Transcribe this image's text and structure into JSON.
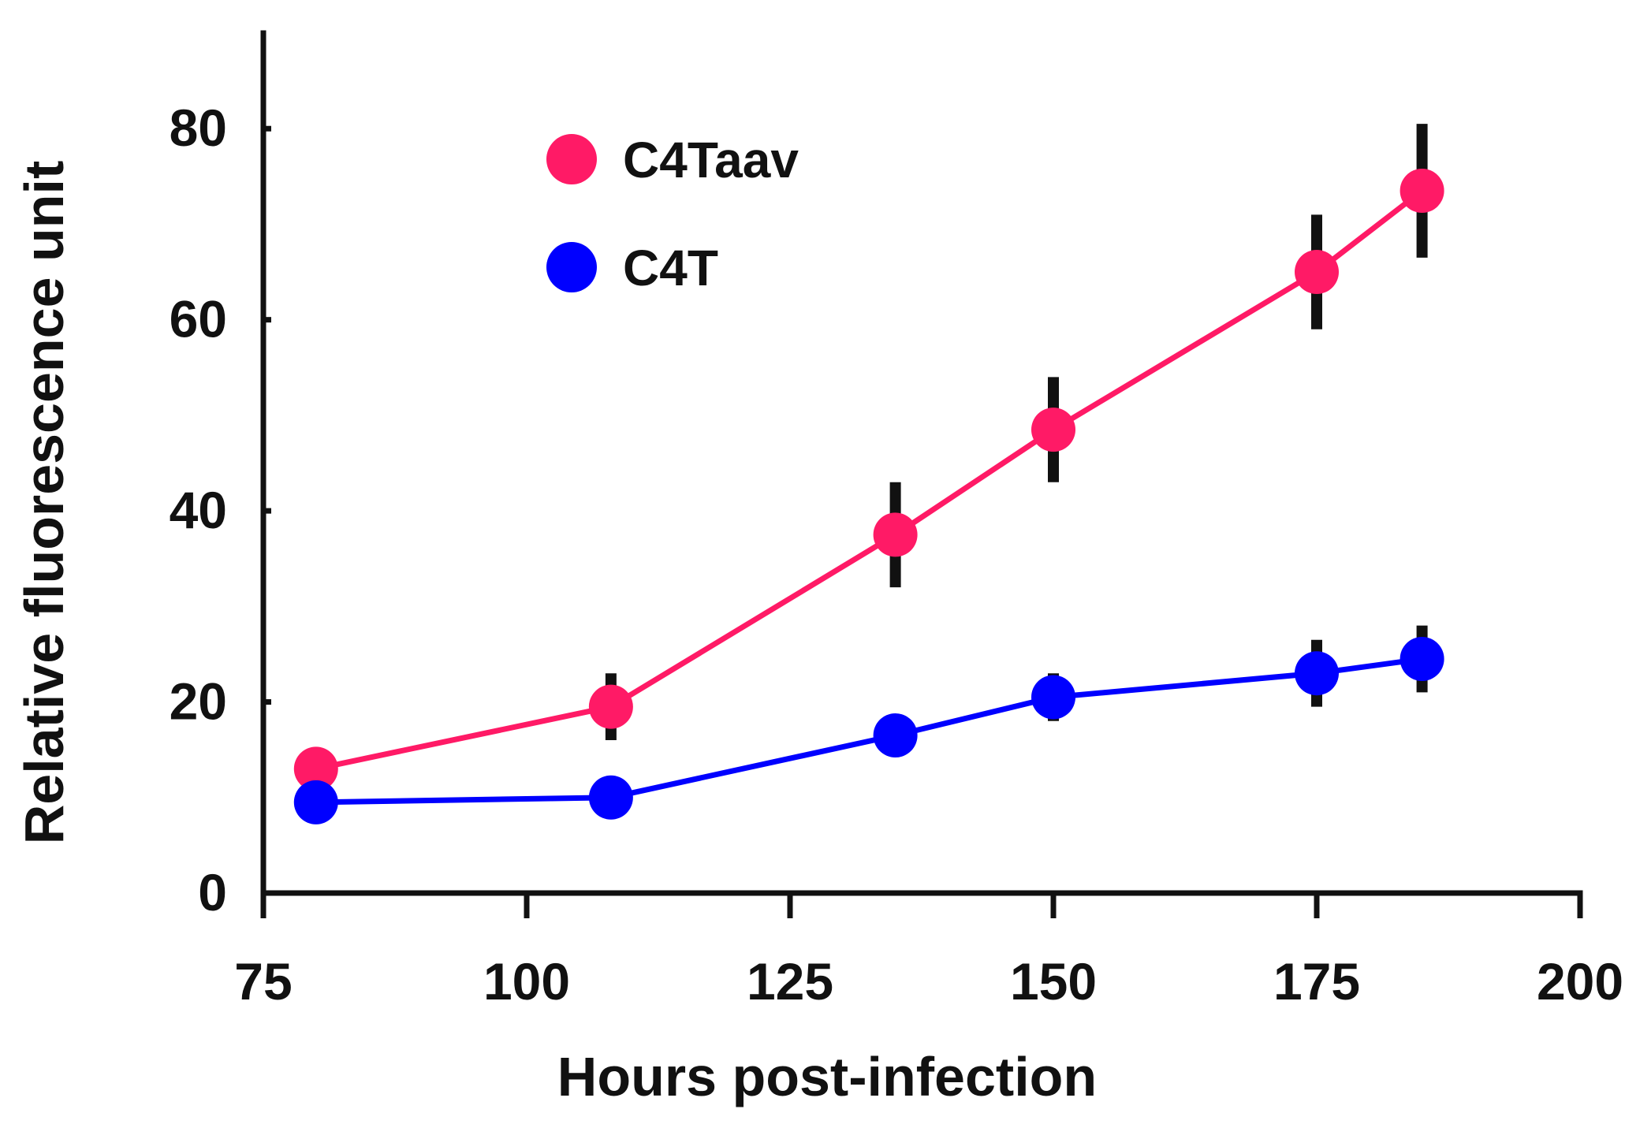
{
  "chart_data": {
    "type": "line",
    "title": "",
    "xlabel": "Hours post-infection",
    "ylabel": "Relative fluorescence unit",
    "xlim": [
      75,
      200
    ],
    "ylim": [
      0,
      90
    ],
    "xticks": [
      75,
      100,
      125,
      150,
      175,
      200
    ],
    "yticks": [
      0,
      20,
      40,
      60,
      80
    ],
    "grid": false,
    "legend_position": "top-left",
    "series": [
      {
        "name": "C4Taav",
        "color": "#ff1a66",
        "x": [
          80,
          108,
          135,
          150,
          175,
          185
        ],
        "y": [
          13,
          19.5,
          37.5,
          48.5,
          65,
          73.5
        ],
        "err": [
          2,
          3.5,
          5.5,
          5.5,
          6,
          7
        ]
      },
      {
        "name": "C4T",
        "color": "#0000ff",
        "x": [
          80,
          108,
          135,
          150,
          175,
          185
        ],
        "y": [
          9.5,
          10,
          16.5,
          20.5,
          23,
          24.5
        ],
        "err": [
          1,
          1,
          1,
          2.5,
          3.5,
          3.5
        ]
      }
    ]
  }
}
